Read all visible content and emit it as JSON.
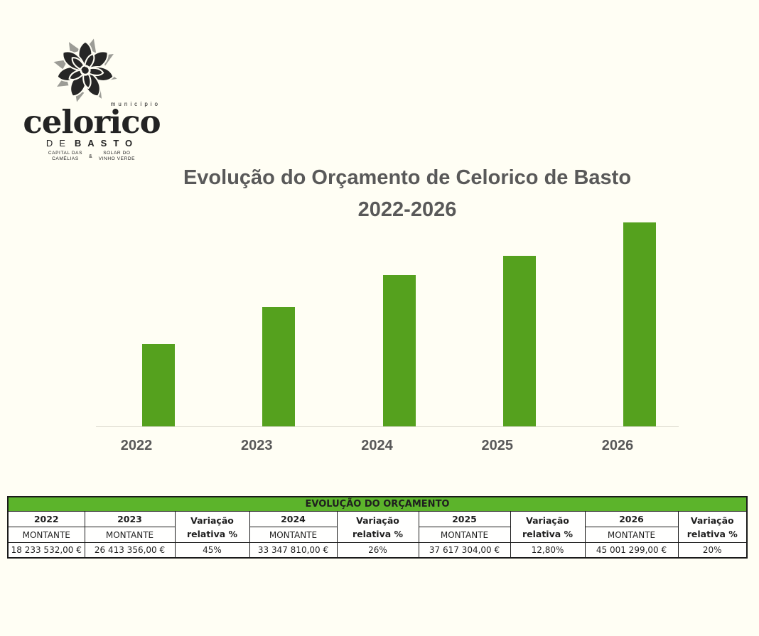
{
  "page": {
    "background": "#FFFEF4"
  },
  "logo": {
    "municipio": "município",
    "name": "celorico",
    "sub_de": "DE",
    "sub_basto": "BASTO",
    "tag_left_line1": "CAPITAL DAS",
    "tag_left_line2": "CAMÉLIAS",
    "tag_amp": "&",
    "tag_right_line1": "SOLAR DO",
    "tag_right_line2": "VINHO VERDE"
  },
  "title": {
    "line1": "Evolução do Orçamento de Celorico de Basto",
    "line2": "2022-2026"
  },
  "chart_data": {
    "type": "bar",
    "title": "Evolução do Orçamento de Celorico de Basto 2022-2026",
    "categories": [
      "2022",
      "2023",
      "2024",
      "2025",
      "2026"
    ],
    "values": [
      18233532,
      26413356,
      33347810,
      37617304,
      45001299
    ],
    "xlabel": "",
    "ylabel": "",
    "ylim": [
      0,
      45001299
    ],
    "bar_color": "#55A11E",
    "grid": false,
    "legend": false
  },
  "table": {
    "title": "EVOLUÇÃO DO ORÇAMENTO",
    "header_bg": "#5CB42B",
    "columns": [
      {
        "type": "year",
        "label": "2022",
        "sub": "MONTANTE",
        "value": "18 233 532,00 €"
      },
      {
        "type": "year",
        "label": "2023",
        "sub": "MONTANTE",
        "value": "26 413 356,00 €"
      },
      {
        "type": "var",
        "label": "Variação",
        "sub": "relativa %",
        "value": "45%"
      },
      {
        "type": "year",
        "label": "2024",
        "sub": "MONTANTE",
        "value": "33 347 810,00 €"
      },
      {
        "type": "var",
        "label": "Variação",
        "sub": "relativa %",
        "value": "26%"
      },
      {
        "type": "year",
        "label": "2025",
        "sub": "MONTANTE",
        "value": "37 617 304,00 €"
      },
      {
        "type": "var",
        "label": "Variação",
        "sub": "relativa %",
        "value": "12,80%"
      },
      {
        "type": "year",
        "label": "2026",
        "sub": "MONTANTE",
        "value": "45 001 299,00 €"
      },
      {
        "type": "var",
        "label": "Variação",
        "sub": "relativa %",
        "value": "20%"
      }
    ]
  }
}
